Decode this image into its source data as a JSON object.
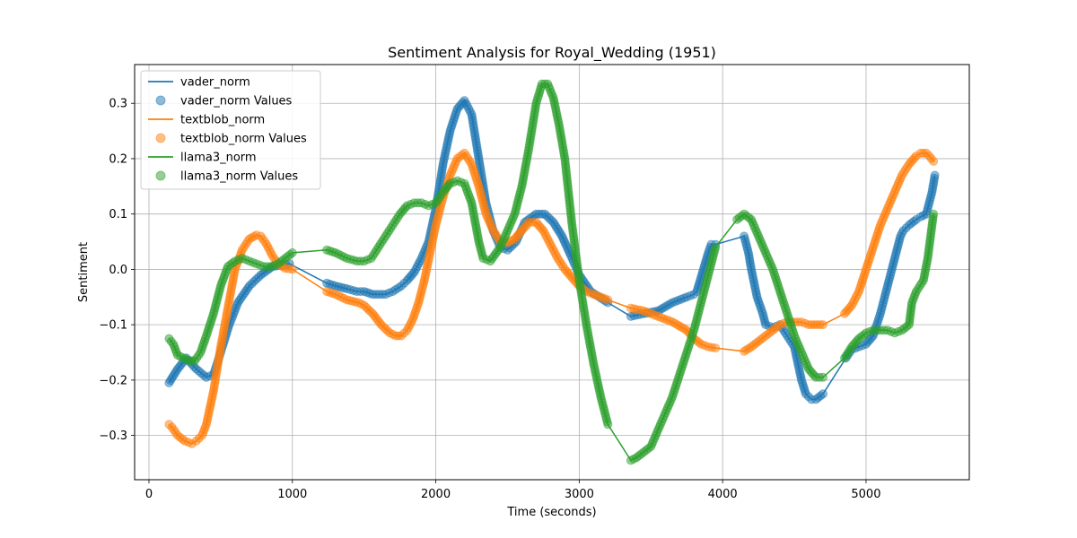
{
  "chart_data": {
    "type": "line",
    "title": "Sentiment Analysis for Royal_Wedding (1951)",
    "xlabel": "Time (seconds)",
    "ylabel": "Sentiment",
    "xlim": [
      -100,
      5720
    ],
    "ylim": [
      -0.38,
      0.37
    ],
    "xticks": [
      0,
      1000,
      2000,
      3000,
      4000,
      5000
    ],
    "yticks": [
      -0.3,
      -0.2,
      -0.1,
      0.0,
      0.1,
      0.2,
      0.3
    ],
    "xtick_labels": [
      "0",
      "1000",
      "2000",
      "3000",
      "4000",
      "5000"
    ],
    "ytick_labels": [
      "−0.3",
      "−0.2",
      "−0.1",
      "0.0",
      "0.1",
      "0.2",
      "0.3"
    ],
    "grid": true,
    "legend_position": "top-left",
    "legend": [
      {
        "label": "vader_norm",
        "kind": "line",
        "series": 0
      },
      {
        "label": "vader_norm Values",
        "kind": "marker",
        "series": 0
      },
      {
        "label": "textblob_norm",
        "kind": "line",
        "series": 1
      },
      {
        "label": "textblob_norm Values",
        "kind": "marker",
        "series": 1
      },
      {
        "label": "llama3_norm",
        "kind": "line",
        "series": 2
      },
      {
        "label": "llama3_norm Values",
        "kind": "marker",
        "series": 2
      }
    ],
    "series": [
      {
        "name": "vader_norm",
        "color": "#1f77b4",
        "x": [
          140,
          200,
          260,
          330,
          400,
          450,
          500,
          560,
          620,
          700,
          780,
          860,
          930,
          980,
          1240,
          1300,
          1380,
          1450,
          1500,
          1560,
          1650,
          1700,
          1760,
          1800,
          1850,
          1900,
          1950,
          2000,
          2050,
          2100,
          2150,
          2200,
          2250,
          2300,
          2350,
          2400,
          2450,
          2500,
          2560,
          2620,
          2700,
          2760,
          2820,
          2880,
          2950,
          3000,
          3080,
          3200,
          3360,
          3450,
          3550,
          3650,
          3750,
          3800,
          3820,
          3900,
          3920,
          3950,
          4150,
          4180,
          4200,
          4240,
          4280,
          4300,
          4350,
          4400,
          4450,
          4500,
          4550,
          4580,
          4620,
          4650,
          4700,
          4860,
          4900,
          4950,
          5000,
          5050,
          5100,
          5150,
          5180,
          5200,
          5220,
          5240,
          5260,
          5300,
          5350,
          5380,
          5420,
          5460,
          5480
        ],
        "y": [
          -0.205,
          -0.18,
          -0.16,
          -0.18,
          -0.195,
          -0.19,
          -0.15,
          -0.1,
          -0.06,
          -0.03,
          -0.01,
          0.005,
          0.008,
          0.01,
          -0.025,
          -0.03,
          -0.035,
          -0.04,
          -0.04,
          -0.045,
          -0.045,
          -0.04,
          -0.03,
          -0.02,
          -0.005,
          0.02,
          0.05,
          0.11,
          0.19,
          0.25,
          0.29,
          0.305,
          0.28,
          0.2,
          0.12,
          0.07,
          0.04,
          0.035,
          0.05,
          0.085,
          0.1,
          0.1,
          0.085,
          0.06,
          0.02,
          -0.01,
          -0.04,
          -0.06,
          -0.085,
          -0.08,
          -0.075,
          -0.06,
          -0.05,
          -0.045,
          -0.04,
          0.03,
          0.045,
          0.045,
          0.06,
          0.03,
          0.0,
          -0.05,
          -0.08,
          -0.1,
          -0.105,
          -0.1,
          -0.12,
          -0.14,
          -0.2,
          -0.225,
          -0.235,
          -0.235,
          -0.225,
          -0.16,
          -0.145,
          -0.14,
          -0.135,
          -0.12,
          -0.08,
          -0.03,
          0.0,
          0.02,
          0.04,
          0.06,
          0.07,
          0.08,
          0.09,
          0.095,
          0.1,
          0.14,
          0.17
        ]
      },
      {
        "name": "textblob_norm",
        "color": "#ff7f0e",
        "x": [
          140,
          160,
          200,
          250,
          300,
          330,
          370,
          400,
          450,
          500,
          550,
          600,
          650,
          700,
          750,
          780,
          820,
          860,
          900,
          950,
          1000,
          1240,
          1300,
          1380,
          1460,
          1500,
          1560,
          1620,
          1680,
          1720,
          1760,
          1800,
          1840,
          1880,
          1920,
          1960,
          2000,
          2050,
          2100,
          2150,
          2200,
          2250,
          2300,
          2350,
          2400,
          2450,
          2500,
          2550,
          2600,
          2650,
          2700,
          2750,
          2800,
          2850,
          2900,
          2950,
          3000,
          3050,
          3100,
          3200,
          3360,
          3450,
          3550,
          3650,
          3750,
          3800,
          3850,
          3900,
          3950,
          4150,
          4200,
          4250,
          4300,
          4350,
          4400,
          4450,
          4500,
          4550,
          4600,
          4700,
          4850,
          4900,
          4950,
          5000,
          5050,
          5100,
          5150,
          5200,
          5250,
          5300,
          5350,
          5380,
          5400,
          5420,
          5440,
          5470
        ],
        "y": [
          -0.28,
          -0.285,
          -0.3,
          -0.31,
          -0.315,
          -0.31,
          -0.3,
          -0.28,
          -0.22,
          -0.14,
          -0.07,
          0.0,
          0.035,
          0.055,
          0.062,
          0.06,
          0.045,
          0.025,
          0.01,
          0.002,
          0.0,
          -0.04,
          -0.045,
          -0.055,
          -0.06,
          -0.065,
          -0.08,
          -0.1,
          -0.115,
          -0.12,
          -0.12,
          -0.11,
          -0.09,
          -0.06,
          -0.02,
          0.03,
          0.08,
          0.13,
          0.17,
          0.2,
          0.21,
          0.19,
          0.15,
          0.1,
          0.07,
          0.05,
          0.048,
          0.055,
          0.07,
          0.085,
          0.085,
          0.07,
          0.045,
          0.02,
          0.0,
          -0.015,
          -0.03,
          -0.04,
          -0.045,
          -0.055,
          -0.07,
          -0.075,
          -0.085,
          -0.095,
          -0.11,
          -0.125,
          -0.135,
          -0.14,
          -0.142,
          -0.148,
          -0.14,
          -0.13,
          -0.12,
          -0.11,
          -0.1,
          -0.095,
          -0.095,
          -0.095,
          -0.1,
          -0.1,
          -0.08,
          -0.065,
          -0.04,
          0.0,
          0.04,
          0.08,
          0.11,
          0.14,
          0.17,
          0.19,
          0.205,
          0.21,
          0.21,
          0.21,
          0.205,
          0.195
        ]
      },
      {
        "name": "llama3_norm",
        "color": "#2ca02c",
        "x": [
          140,
          170,
          200,
          240,
          280,
          320,
          360,
          400,
          450,
          500,
          550,
          600,
          650,
          700,
          750,
          800,
          850,
          900,
          950,
          1000,
          1240,
          1300,
          1380,
          1450,
          1500,
          1550,
          1600,
          1650,
          1700,
          1750,
          1800,
          1850,
          1900,
          1950,
          2000,
          2050,
          2100,
          2150,
          2200,
          2250,
          2300,
          2330,
          2380,
          2450,
          2500,
          2550,
          2600,
          2650,
          2700,
          2740,
          2780,
          2820,
          2860,
          2900,
          2950,
          3000,
          3050,
          3100,
          3150,
          3200,
          3360,
          3400,
          3450,
          3500,
          3550,
          3600,
          3650,
          3700,
          3750,
          3800,
          3850,
          3900,
          3950,
          4100,
          4150,
          4200,
          4250,
          4300,
          4350,
          4400,
          4450,
          4500,
          4550,
          4600,
          4650,
          4700,
          4850,
          4900,
          4950,
          5000,
          5050,
          5100,
          5150,
          5200,
          5250,
          5300,
          5320,
          5350,
          5400,
          5430,
          5470
        ],
        "y": [
          -0.125,
          -0.135,
          -0.155,
          -0.16,
          -0.165,
          -0.165,
          -0.15,
          -0.12,
          -0.08,
          -0.03,
          0.005,
          0.015,
          0.02,
          0.015,
          0.01,
          0.005,
          0.005,
          0.01,
          0.02,
          0.03,
          0.035,
          0.03,
          0.02,
          0.015,
          0.015,
          0.02,
          0.04,
          0.06,
          0.08,
          0.1,
          0.115,
          0.12,
          0.12,
          0.115,
          0.12,
          0.14,
          0.155,
          0.16,
          0.155,
          0.12,
          0.05,
          0.02,
          0.015,
          0.04,
          0.07,
          0.1,
          0.15,
          0.22,
          0.3,
          0.335,
          0.335,
          0.31,
          0.26,
          0.2,
          0.08,
          -0.02,
          -0.1,
          -0.17,
          -0.23,
          -0.28,
          -0.345,
          -0.34,
          -0.33,
          -0.32,
          -0.29,
          -0.26,
          -0.23,
          -0.19,
          -0.15,
          -0.11,
          -0.06,
          -0.01,
          0.04,
          0.09,
          0.1,
          0.09,
          0.06,
          0.03,
          0.0,
          -0.04,
          -0.08,
          -0.12,
          -0.15,
          -0.18,
          -0.195,
          -0.195,
          -0.16,
          -0.14,
          -0.125,
          -0.115,
          -0.11,
          -0.11,
          -0.11,
          -0.115,
          -0.11,
          -0.1,
          -0.06,
          -0.04,
          -0.02,
          0.02,
          0.1
        ]
      }
    ]
  }
}
